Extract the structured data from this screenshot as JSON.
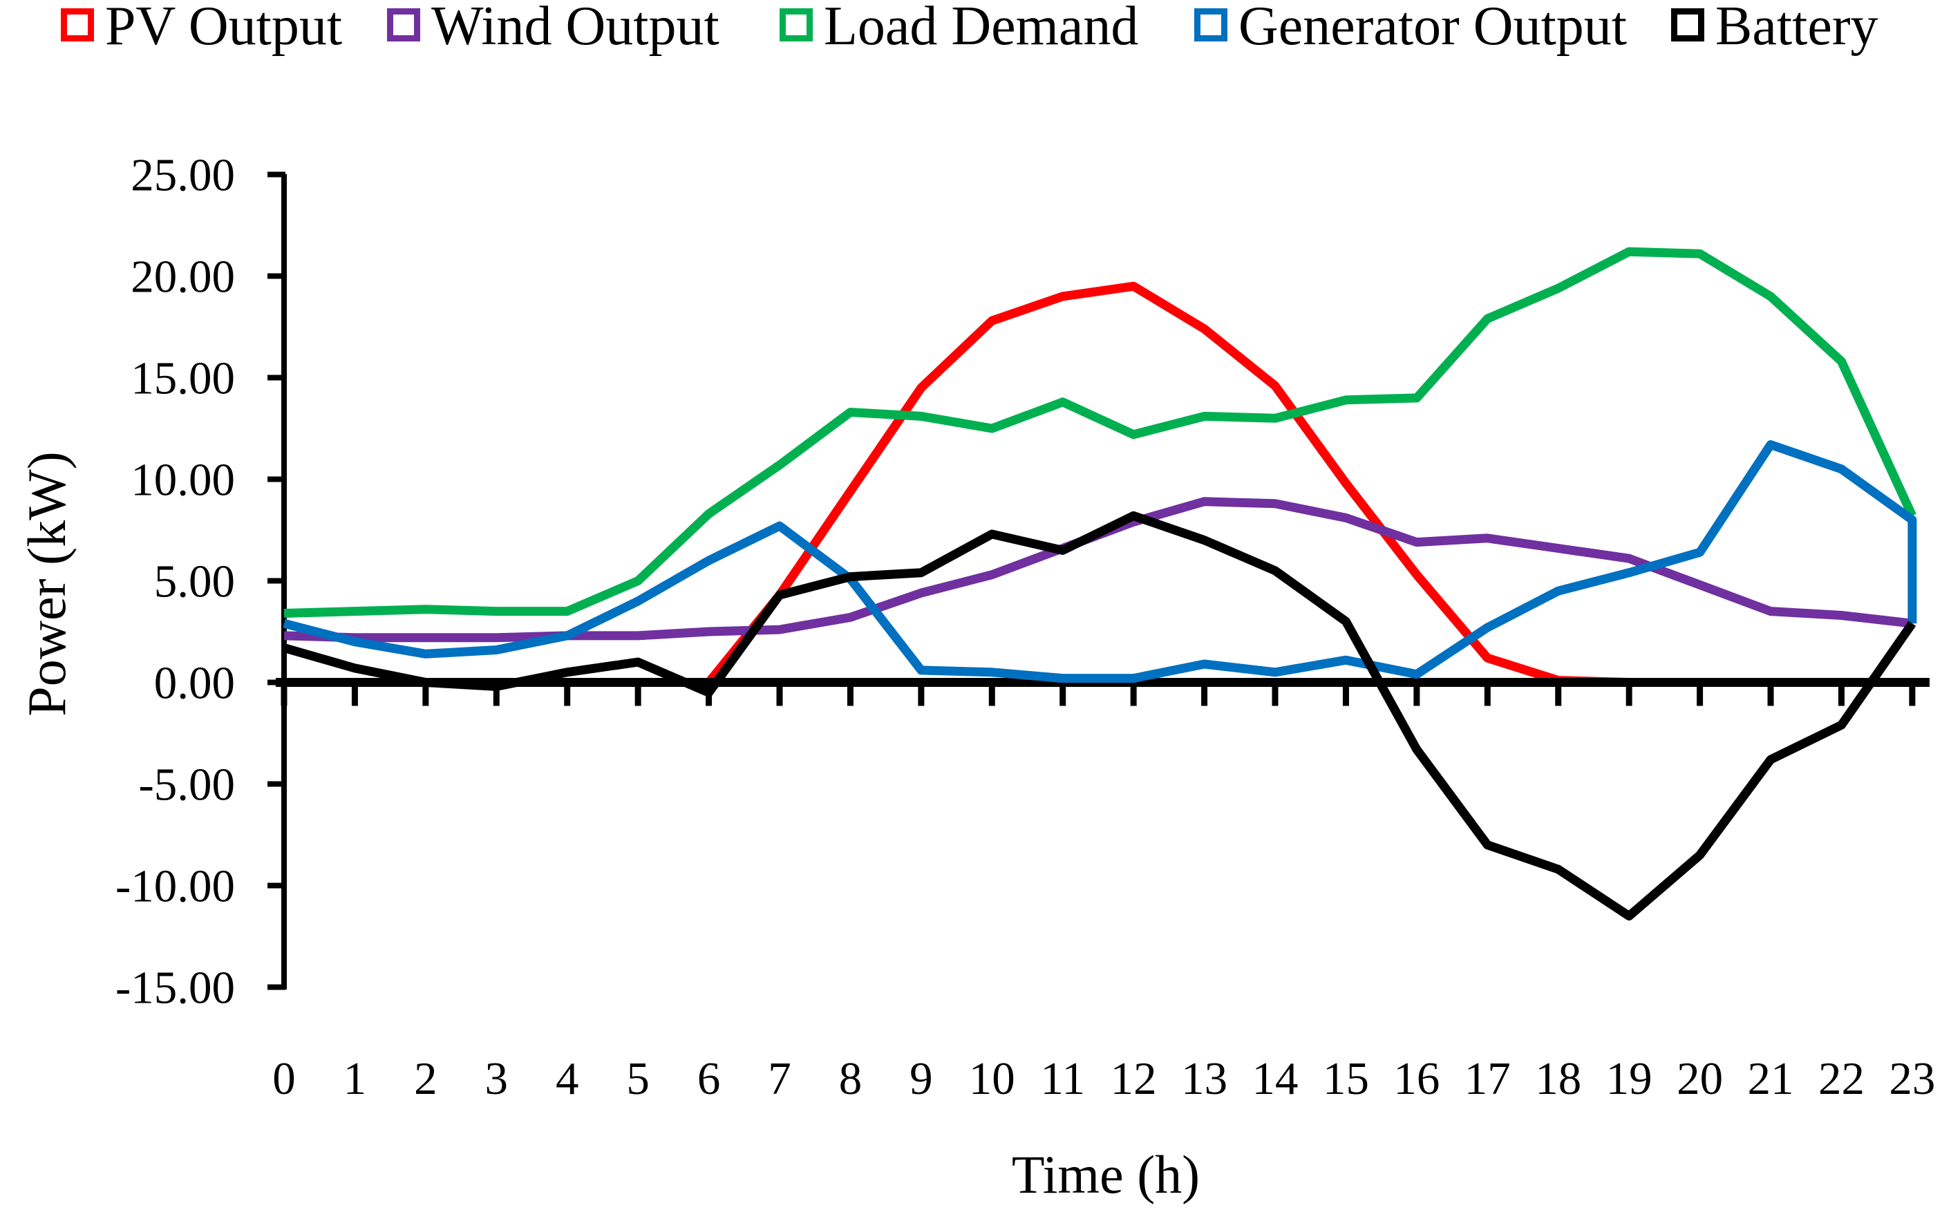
{
  "chart_data": {
    "type": "line",
    "title": "",
    "xlabel": "Time (h)",
    "ylabel": "Power (kW)",
    "x": [
      0,
      1,
      2,
      3,
      4,
      5,
      6,
      7,
      8,
      9,
      10,
      11,
      12,
      13,
      14,
      15,
      16,
      17,
      18,
      19,
      20,
      21,
      22,
      23
    ],
    "xtick_labels": [
      "0",
      "1",
      "2",
      "3",
      "4",
      "5",
      "6",
      "7",
      "8",
      "9",
      "10",
      "11",
      "12",
      "13",
      "14",
      "15",
      "16",
      "17",
      "18",
      "19",
      "20",
      "21",
      "22",
      "23"
    ],
    "ylim": [
      -15,
      25
    ],
    "ytick_step": 5,
    "ytick_labels": [
      "25.00",
      "20.00",
      "15.00",
      "10.00",
      "5.00",
      "0.00",
      "-5.00",
      "-10.00",
      "-15.00"
    ],
    "grid": "off",
    "legend_position": "top",
    "series": [
      {
        "name": "PV Output",
        "color": "#FF0000",
        "values": [
          0,
          0,
          0,
          0,
          0,
          0,
          0,
          4.3,
          9.4,
          14.5,
          17.8,
          19.0,
          19.5,
          17.4,
          14.6,
          9.8,
          5.3,
          1.2,
          0.1,
          0,
          0,
          0,
          0,
          0
        ]
      },
      {
        "name": "Wind Output",
        "color": "#7030A0",
        "values": [
          2.3,
          2.2,
          2.2,
          2.2,
          2.3,
          2.3,
          2.5,
          2.6,
          3.2,
          4.4,
          5.3,
          6.6,
          7.9,
          8.9,
          8.8,
          8.1,
          6.9,
          7.1,
          6.6,
          6.1,
          4.8,
          3.5,
          3.3,
          2.9
        ]
      },
      {
        "name": "Load Demand",
        "color": "#00B050",
        "values": [
          3.4,
          3.5,
          3.6,
          3.5,
          3.5,
          5.0,
          8.3,
          10.7,
          13.3,
          13.1,
          12.5,
          13.8,
          12.2,
          13.1,
          13.0,
          13.9,
          14.0,
          17.9,
          19.4,
          21.2,
          21.1,
          19.0,
          15.8,
          8.2
        ]
      },
      {
        "name": "Generator Output",
        "color": "#0070C0",
        "values": [
          2.9,
          2.0,
          1.4,
          1.6,
          2.3,
          4.0,
          6.0,
          7.7,
          5.1,
          0.6,
          0.5,
          0.2,
          0.2,
          0.9,
          0.5,
          1.1,
          0.4,
          2.7,
          4.5,
          5.4,
          6.4,
          11.7,
          10.5,
          8.0
        ],
        "terminal_drop": 2.9
      },
      {
        "name": "Battery",
        "color": "#000000",
        "values": [
          1.7,
          0.7,
          0.0,
          -0.2,
          0.5,
          1.0,
          -0.5,
          4.3,
          5.2,
          5.4,
          7.3,
          6.5,
          8.2,
          7.0,
          5.5,
          3.0,
          -3.3,
          -8.0,
          -9.2,
          -11.5,
          -8.5,
          -3.8,
          -2.1,
          2.9
        ]
      }
    ],
    "legend_swatch_x": [
      88,
      560,
      1128,
      1728,
      2418
    ]
  }
}
